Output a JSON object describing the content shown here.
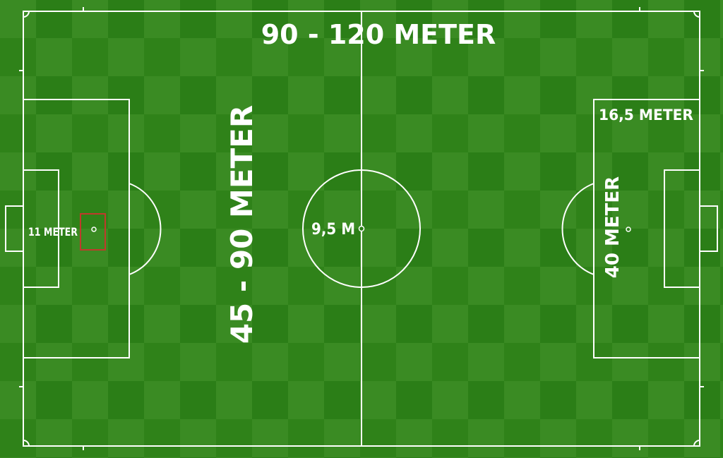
{
  "labels": {
    "length": "90 - 120 METER",
    "width": "45 - 90 METER",
    "penalty_spot_distance": "11 METER",
    "penalty_area_depth": "16,5 METER",
    "penalty_area_width": "40 METER",
    "center_circle_radius": "9,5 M"
  },
  "colors": {
    "grass_dark": "#2a7d16",
    "grass_light": "#3f8f25",
    "lines": "#ffffff",
    "highlight_box": "#c0392b"
  }
}
